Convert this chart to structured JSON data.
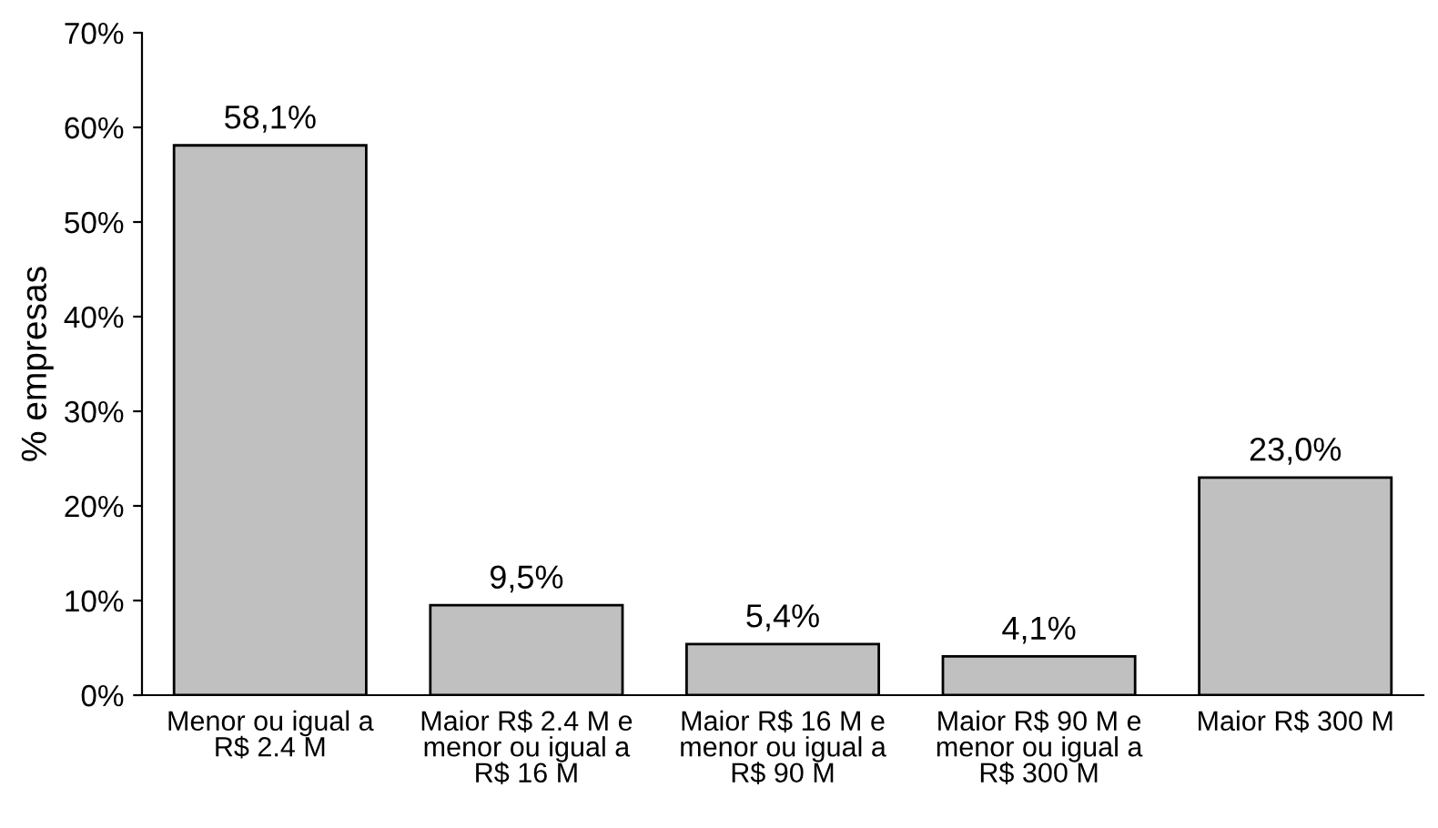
{
  "chart_data": {
    "type": "bar",
    "ylabel": "% empresas",
    "categories": [
      "Menor ou igual a\nR$ 2.4 M",
      "Maior R$ 2.4 M e\nmenor ou igual a\nR$ 16 M",
      "Maior R$ 16 M e\nmenor ou igual a\nR$ 90 M",
      "Maior R$ 90 M e\nmenor ou igual a\nR$ 300 M",
      "Maior R$ 300 M"
    ],
    "values": [
      58.1,
      9.5,
      5.4,
      4.1,
      23.0
    ],
    "value_labels": [
      "58,1%",
      "9,5%",
      "5,4%",
      "4,1%",
      "23,0%"
    ],
    "color": "#c0c0c0",
    "ylim": [
      0,
      70
    ],
    "yticks": [
      {
        "value": 0,
        "label": "0%"
      },
      {
        "value": 10,
        "label": "10%"
      },
      {
        "value": 20,
        "label": "20%"
      },
      {
        "value": 30,
        "label": "30%"
      },
      {
        "value": 40,
        "label": "40%"
      },
      {
        "value": 50,
        "label": "50%"
      },
      {
        "value": 60,
        "label": "60%"
      },
      {
        "value": 70,
        "label": "70%"
      }
    ],
    "grid": false,
    "legend": false
  }
}
